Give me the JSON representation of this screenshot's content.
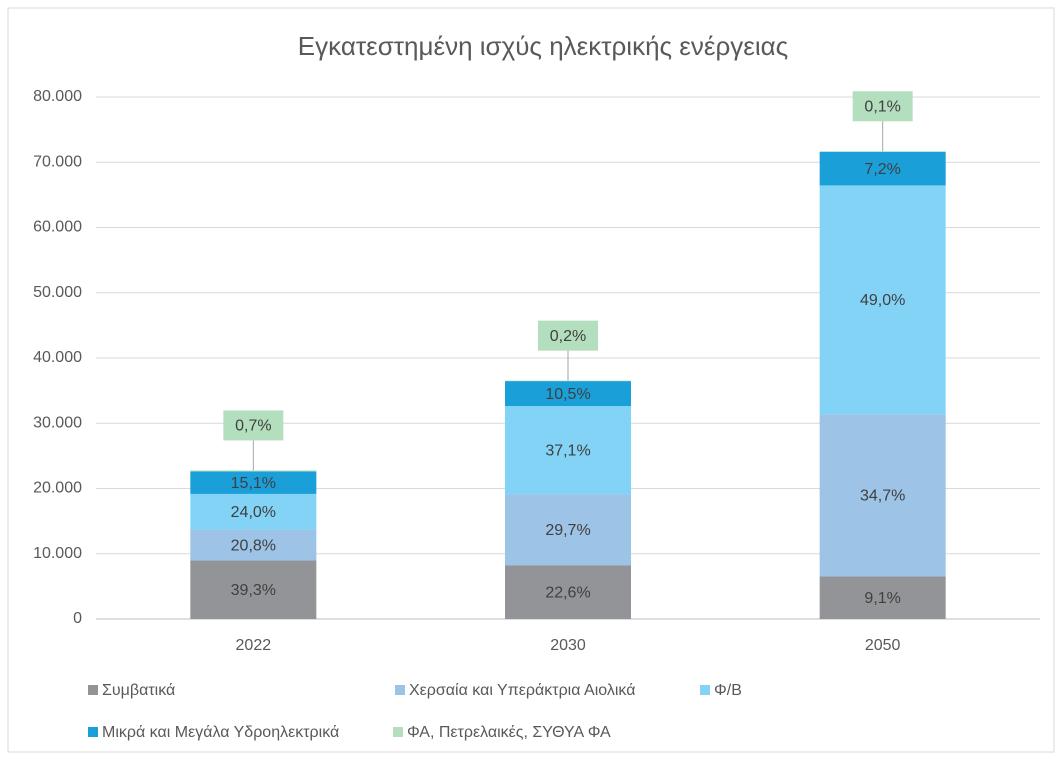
{
  "chart_data": {
    "type": "stacked_bar",
    "title": "Εγκατεστημένη ισχύς ηλεκτρικής ενέργειας",
    "categories": [
      "2022",
      "2030",
      "2050"
    ],
    "series": [
      {
        "name": "Συμβατικά",
        "color": "#929497",
        "values": [
          8960,
          8250,
          6520
        ],
        "value_labels": [
          "39,3%",
          "22,6%",
          "9,1%"
        ]
      },
      {
        "name": "Χερσαία και Υπεράκτρια Αιολικά",
        "color": "#9dc3e6",
        "values": [
          4740,
          10840,
          24850
        ],
        "value_labels": [
          "20,8%",
          "29,7%",
          "34,7%"
        ]
      },
      {
        "name": "Φ/Β",
        "color": "#83d3f7",
        "values": [
          5470,
          13540,
          35080
        ],
        "value_labels": [
          "24,0%",
          "37,1%",
          "49,0%"
        ]
      },
      {
        "name": "Μικρά και Μεγάλα Υδροηλεκτρικά",
        "color": "#1a9fd9",
        "values": [
          3440,
          3830,
          5160
        ],
        "value_labels": [
          "15,1%",
          "10,5%",
          "7,2%"
        ]
      },
      {
        "name": "ΦΑ, Πετρελαικές, ΣΥΘΥΑ ΦΑ",
        "color": "#b3dfbe",
        "values": [
          160,
          70,
          70
        ],
        "value_labels": [
          "0,7%",
          "0,2%",
          "0,1%"
        ]
      }
    ],
    "ylim": [
      0,
      80000
    ],
    "yticks": [
      0,
      {
        "value": 10000,
        "label": "10.000"
      },
      {
        "value": 20000,
        "label": "20.000"
      },
      {
        "value": 30000,
        "label": "30.000"
      },
      {
        "value": 40000,
        "label": "40.000"
      },
      {
        "value": 50000,
        "label": "50.000"
      },
      {
        "value": 60000,
        "label": "60.000"
      },
      {
        "value": 70000,
        "label": "70.000"
      },
      {
        "value": 80000,
        "label": "80.000"
      }
    ],
    "grid": true
  }
}
